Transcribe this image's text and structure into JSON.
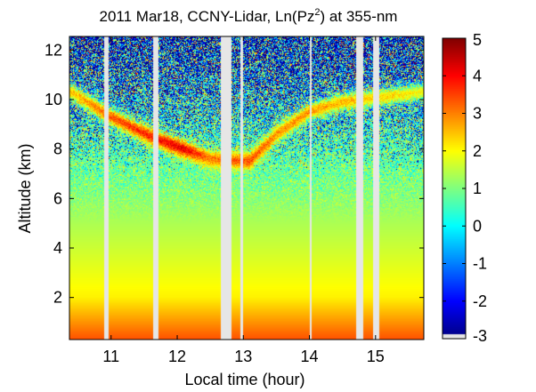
{
  "chart_data": {
    "type": "heatmap",
    "title": {
      "prefix": "2011 Mar18, CCNY-Lidar, Ln(Pz",
      "superscript": "2",
      "suffix": ") at 355-nm"
    },
    "xlabel": "Local time (hour)",
    "ylabel": "Altitude (km)",
    "xlim": [
      10.37,
      15.73
    ],
    "ylim": [
      0.3,
      12.55
    ],
    "x_ticks": [
      11,
      12,
      13,
      14,
      15
    ],
    "y_ticks": [
      2,
      4,
      6,
      8,
      10,
      12
    ],
    "colorbar": {
      "range": [
        -3,
        5
      ],
      "ticks": [
        -3,
        -2,
        -1,
        0,
        1,
        2,
        3,
        4,
        5
      ],
      "colormap": "jet"
    },
    "data_gaps_hours": [
      [
        10.9,
        10.96
      ],
      [
        11.64,
        11.72
      ],
      [
        12.66,
        12.82
      ],
      [
        12.96,
        12.99
      ],
      [
        14.0,
        14.03
      ],
      [
        14.7,
        14.82
      ],
      [
        14.96,
        15.06
      ]
    ],
    "cloud_layer": {
      "description": "Backscatter layer near 8-10.5 km",
      "centers": [
        {
          "hour": 10.4,
          "altitude_km": 10.3,
          "value": 2.4
        },
        {
          "hour": 11.0,
          "altitude_km": 9.3,
          "value": 3.3
        },
        {
          "hour": 11.6,
          "altitude_km": 8.5,
          "value": 3.8
        },
        {
          "hour": 12.1,
          "altitude_km": 8.0,
          "value": 4.2
        },
        {
          "hour": 12.5,
          "altitude_km": 7.6,
          "value": 3.0
        },
        {
          "hour": 13.1,
          "altitude_km": 7.5,
          "value": 3.4
        },
        {
          "hour": 13.5,
          "altitude_km": 8.6,
          "value": 2.9
        },
        {
          "hour": 14.0,
          "altitude_km": 9.5,
          "value": 2.8
        },
        {
          "hour": 14.5,
          "altitude_km": 9.9,
          "value": 2.6
        },
        {
          "hour": 15.7,
          "altitude_km": 10.3,
          "value": 2.0
        }
      ]
    },
    "colors": {
      "background": "#ffffff",
      "gap": "#e6e6e6",
      "axis": "#000000"
    }
  }
}
